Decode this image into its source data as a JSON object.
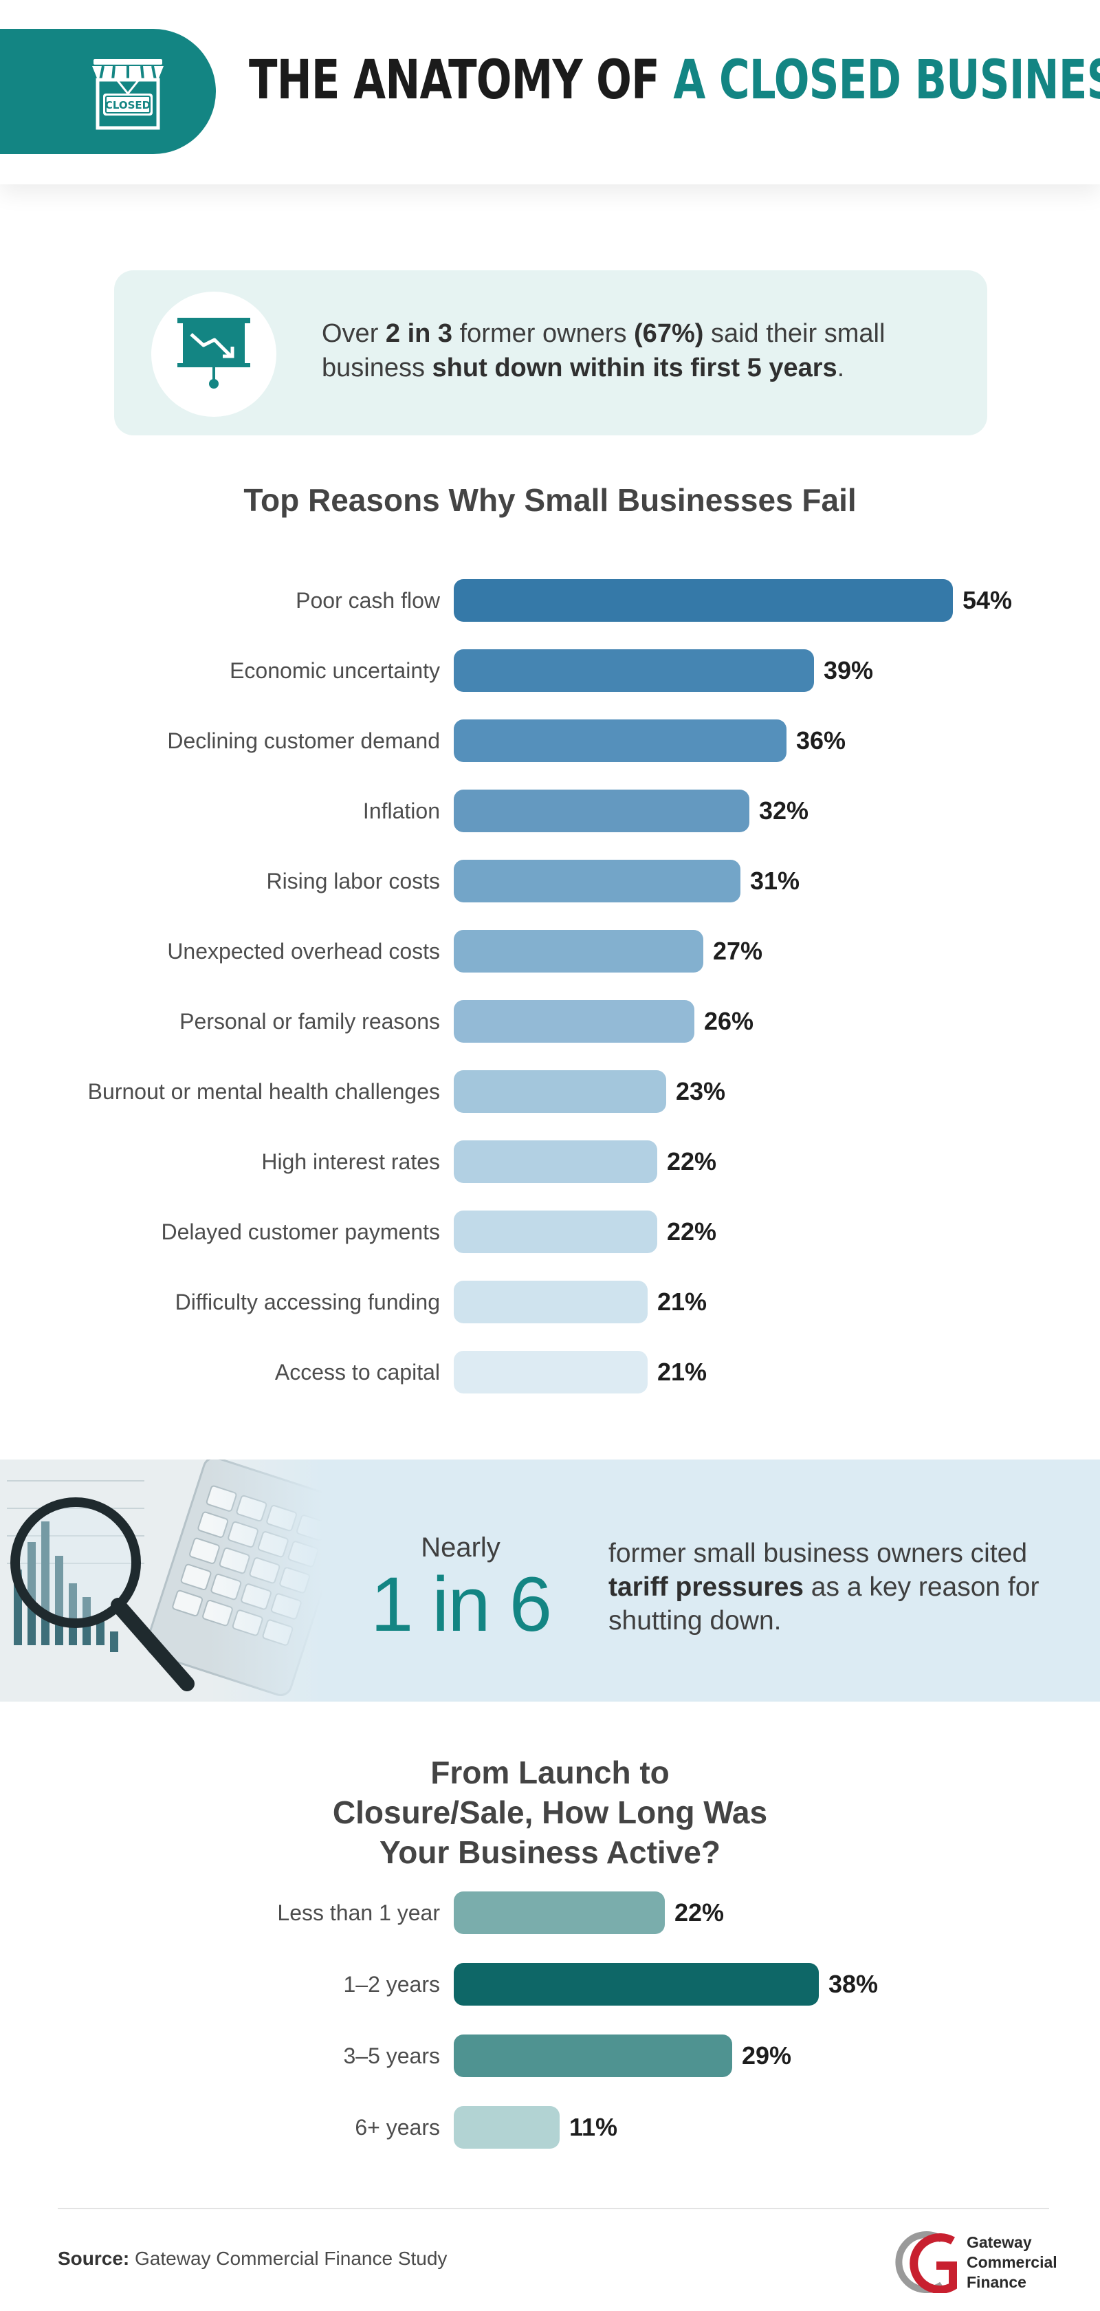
{
  "header": {
    "title_part1": "THE ANATOMY OF ",
    "title_part2": "A CLOSED BUSINESS",
    "icon_name": "closed-shop-icon",
    "icon_sign_text": "CLOSED",
    "accent_color": "#138583"
  },
  "stat": {
    "icon_name": "declining-chart-board-icon",
    "t1": "Over ",
    "b1": "2 in 3",
    "t2": " former owners ",
    "b2": "(67%)",
    "t3": " said their small business ",
    "b3": "shut down within its first 5 years",
    "t4": "."
  },
  "banner": {
    "label": "Nearly",
    "value": "1 in 6",
    "t1": "former small business owners cited ",
    "b1": "tariff pressures",
    "t2": " as a key reason for shutting down.",
    "image_name": "magnifier-calculator-photo"
  },
  "chart_data": [
    {
      "type": "bar",
      "orientation": "horizontal",
      "title": "Top Reasons Why Small Businesses Fail",
      "categories": [
        "Poor cash flow",
        "Economic uncertainty",
        "Declining customer demand",
        "Inflation",
        "Rising labor costs",
        "Unexpected overhead costs",
        "Personal or family reasons",
        "Burnout or mental health challenges",
        "High interest rates",
        "Delayed customer payments",
        "Difficulty accessing funding",
        "Access to capital"
      ],
      "values": [
        54,
        39,
        36,
        32,
        31,
        27,
        26,
        23,
        22,
        22,
        21,
        21
      ],
      "value_labels": [
        "54%",
        "39%",
        "36%",
        "32%",
        "31%",
        "27%",
        "26%",
        "23%",
        "22%",
        "22%",
        "21%",
        "21%"
      ],
      "colors": [
        "#3579a8",
        "#4585b2",
        "#5590bb",
        "#6499c0",
        "#73a5c8",
        "#83b0cf",
        "#93bad6",
        "#a3c6dc",
        "#b2d0e3",
        "#c1dae9",
        "#cfe3ee",
        "#ddebf3"
      ],
      "xlim": [
        0,
        54
      ],
      "grid": false,
      "legend": "none"
    },
    {
      "type": "bar",
      "orientation": "horizontal",
      "title": "From Launch to Closure/Sale, How Long Was Your Business Active?",
      "categories": [
        "Less than 1 year",
        "1–2 years",
        "3–5 years",
        "6+ years"
      ],
      "values": [
        22,
        38,
        29,
        11
      ],
      "value_labels": [
        "22%",
        "38%",
        "29%",
        "11%"
      ],
      "colors": [
        "#7aadac",
        "#0e6767",
        "#4f9391",
        "#b2d3d3"
      ],
      "xlim": [
        0,
        38
      ],
      "grid": false,
      "legend": "none"
    }
  ],
  "footer": {
    "source_label": "Source:",
    "source_text": " Gateway Commercial Finance Study",
    "logo_name": "gateway-logo-icon",
    "logo_line1": "Gateway",
    "logo_line2": "Commercial",
    "logo_line3": "Finance"
  }
}
